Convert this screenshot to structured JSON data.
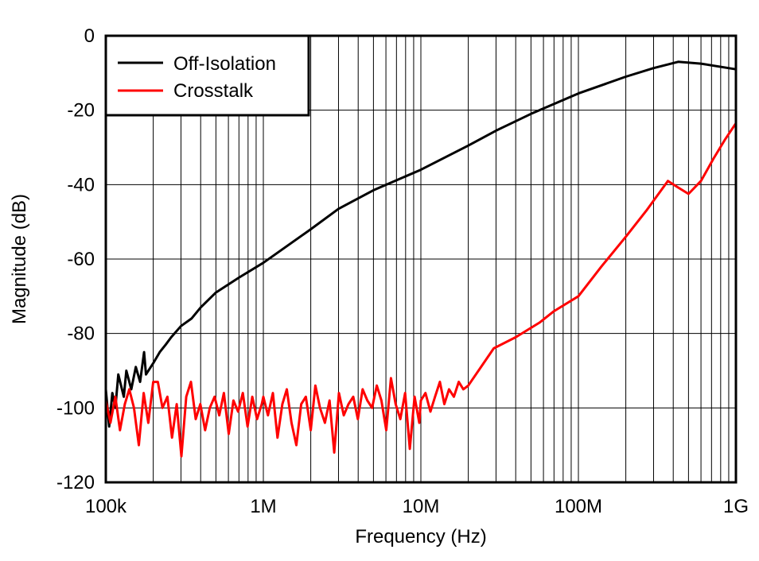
{
  "chart_data": {
    "type": "line",
    "title": "",
    "xlabel": "Frequency (Hz)",
    "ylabel": "Magnitude (dB)",
    "xscale": "log",
    "xlim": [
      100000,
      1000000000
    ],
    "ylim": [
      -120,
      0
    ],
    "grid": true,
    "legend_position": "top-left",
    "x_ticks": [
      {
        "value": 100000,
        "label": "100k"
      },
      {
        "value": 1000000,
        "label": "1M"
      },
      {
        "value": 10000000,
        "label": "10M"
      },
      {
        "value": 100000000,
        "label": "100M"
      },
      {
        "value": 1000000000,
        "label": "1G"
      }
    ],
    "y_ticks": [
      {
        "value": 0,
        "label": "0"
      },
      {
        "value": -20,
        "label": "-20"
      },
      {
        "value": -40,
        "label": "-40"
      },
      {
        "value": -60,
        "label": "-60"
      },
      {
        "value": -80,
        "label": "-80"
      },
      {
        "value": -100,
        "label": "-100"
      },
      {
        "value": -120,
        "label": "-120"
      }
    ],
    "series": [
      {
        "name": "Off-Isolation",
        "color": "#000000",
        "points": [
          [
            100000.0,
            -95
          ],
          [
            105000.0,
            -105
          ],
          [
            110000.0,
            -96
          ],
          [
            115000.0,
            -100
          ],
          [
            120000.0,
            -91
          ],
          [
            130000.0,
            -97
          ],
          [
            135000.0,
            -90
          ],
          [
            145000.0,
            -95
          ],
          [
            155000.0,
            -89
          ],
          [
            165000.0,
            -93
          ],
          [
            175000.0,
            -85
          ],
          [
            180000.0,
            -91
          ],
          [
            200000.0,
            -88
          ],
          [
            220000.0,
            -85
          ],
          [
            240000.0,
            -83
          ],
          [
            260000.0,
            -81
          ],
          [
            300000.0,
            -78
          ],
          [
            350000.0,
            -76
          ],
          [
            400000.0,
            -73
          ],
          [
            500000.0,
            -69
          ],
          [
            700000.0,
            -65
          ],
          [
            1000000.0,
            -61
          ],
          [
            2000000.0,
            -52
          ],
          [
            3000000.0,
            -46.5
          ],
          [
            5000000.0,
            -41.5
          ],
          [
            10000000.0,
            -36
          ],
          [
            20000000.0,
            -29.5
          ],
          [
            30000000.0,
            -25.5
          ],
          [
            50000000.0,
            -21
          ],
          [
            100000000.0,
            -15.5
          ],
          [
            200000000.0,
            -11
          ],
          [
            300000000.0,
            -8.7
          ],
          [
            430000000.0,
            -7
          ],
          [
            600000000.0,
            -7.5
          ],
          [
            1000000000.0,
            -9
          ]
        ]
      },
      {
        "name": "Crosstalk",
        "color": "#ff0000",
        "points": [
          [
            100000.0,
            -98
          ],
          [
            107000.0,
            -104
          ],
          [
            115000.0,
            -97
          ],
          [
            123000.0,
            -106
          ],
          [
            132000.0,
            -99
          ],
          [
            141000.0,
            -95
          ],
          [
            151000.0,
            -100
          ],
          [
            162000.0,
            -110
          ],
          [
            174000.0,
            -96
          ],
          [
            186000.0,
            -104
          ],
          [
            200000.0,
            -93
          ],
          [
            214000.0,
            -93
          ],
          [
            229000.0,
            -100
          ],
          [
            246000.0,
            -97
          ],
          [
            263000.0,
            -108
          ],
          [
            282000.0,
            -99
          ],
          [
            302000.0,
            -113
          ],
          [
            324000.0,
            -97
          ],
          [
            347000.0,
            -93
          ],
          [
            372000.0,
            -103
          ],
          [
            398000.0,
            -99
          ],
          [
            427000.0,
            -106
          ],
          [
            457000.0,
            -100
          ],
          [
            490000.0,
            -97
          ],
          [
            525000.0,
            -102
          ],
          [
            562000.0,
            -96
          ],
          [
            603000.0,
            -107
          ],
          [
            646000.0,
            -98
          ],
          [
            692000.0,
            -101
          ],
          [
            741000.0,
            -96
          ],
          [
            794000.0,
            -105
          ],
          [
            851000.0,
            -97
          ],
          [
            912000.0,
            -103
          ],
          [
            977000.0,
            -99
          ],
          [
            1000000.0,
            -97
          ],
          [
            1070000.0,
            -102
          ],
          [
            1150000.0,
            -96
          ],
          [
            1230000.0,
            -108
          ],
          [
            1320000.0,
            -99
          ],
          [
            1410000.0,
            -95
          ],
          [
            1510000.0,
            -104
          ],
          [
            1620000.0,
            -110
          ],
          [
            1740000.0,
            -99
          ],
          [
            1860000.0,
            -97
          ],
          [
            2000000.0,
            -106
          ],
          [
            2140000.0,
            -94
          ],
          [
            2290000.0,
            -100
          ],
          [
            2460000.0,
            -104
          ],
          [
            2630000.0,
            -98
          ],
          [
            2820000.0,
            -112
          ],
          [
            3020000.0,
            -96
          ],
          [
            3240000.0,
            -102
          ],
          [
            3470000.0,
            -99
          ],
          [
            3720000.0,
            -97
          ],
          [
            3980000.0,
            -103
          ],
          [
            4270000.0,
            -95
          ],
          [
            4570000.0,
            -98
          ],
          [
            4900000.0,
            -100
          ],
          [
            5250000.0,
            -94
          ],
          [
            5620000.0,
            -98
          ],
          [
            6030000.0,
            -106
          ],
          [
            6460000.0,
            -92
          ],
          [
            6920000.0,
            -99
          ],
          [
            7410000.0,
            -103
          ],
          [
            7940000.0,
            -96
          ],
          [
            8510000.0,
            -111
          ],
          [
            9120000.0,
            -97
          ],
          [
            9770000.0,
            -104
          ],
          [
            10000000.0,
            -98
          ],
          [
            10700000.0,
            -96
          ],
          [
            11500000.0,
            -101
          ],
          [
            12300000.0,
            -97
          ],
          [
            13200000.0,
            -93
          ],
          [
            14100000.0,
            -99
          ],
          [
            15100000.0,
            -95
          ],
          [
            16200000.0,
            -97
          ],
          [
            17400000.0,
            -93
          ],
          [
            18600000.0,
            -95
          ],
          [
            20000000.0,
            -94
          ],
          [
            25000000.0,
            -88
          ],
          [
            29000000.0,
            -84
          ],
          [
            40000000.0,
            -81
          ],
          [
            57000000.0,
            -77
          ],
          [
            70000000.0,
            -74
          ],
          [
            100000000.0,
            -70
          ],
          [
            140000000.0,
            -62
          ],
          [
            200000000.0,
            -54
          ],
          [
            270000000.0,
            -47
          ],
          [
            370000000.0,
            -39
          ],
          [
            420000000.0,
            -40.5
          ],
          [
            500000000.0,
            -42.5
          ],
          [
            600000000.0,
            -39
          ],
          [
            720000000.0,
            -33
          ],
          [
            850000000.0,
            -28
          ],
          [
            1000000000.0,
            -23.5
          ]
        ]
      }
    ]
  }
}
